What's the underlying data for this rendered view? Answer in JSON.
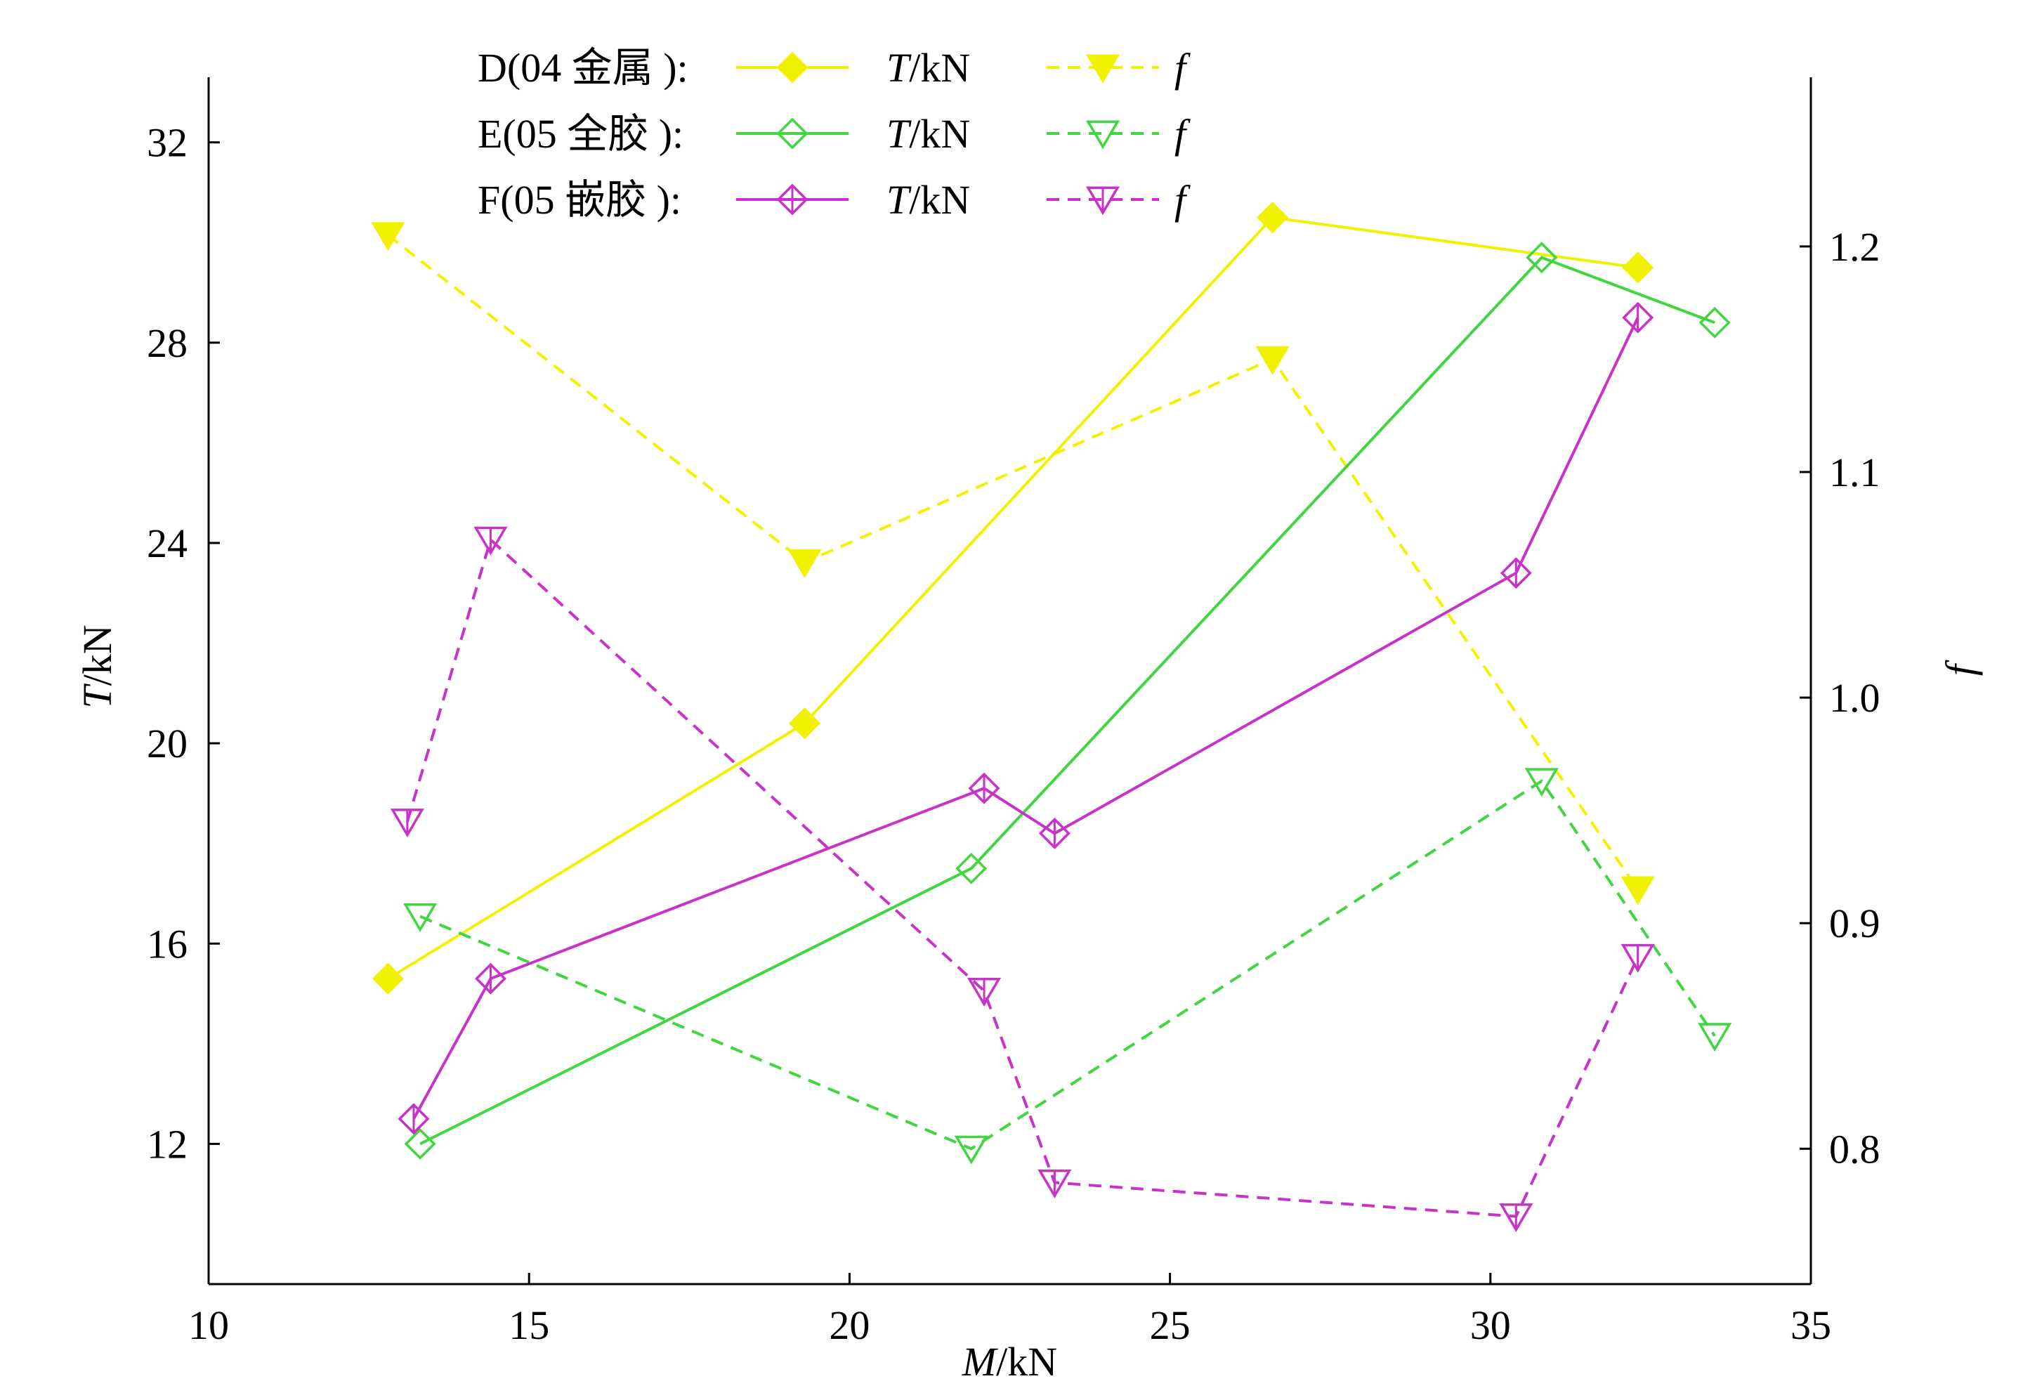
{
  "chart_data": {
    "type": "line",
    "x_axis": {
      "label_italic": "M",
      "label_rest": "/kN",
      "range": [
        10,
        35
      ],
      "ticks": [
        10,
        15,
        20,
        25,
        30,
        35
      ],
      "tick_labels": [
        "10",
        "15",
        "20",
        "25",
        "30",
        "35"
      ]
    },
    "y_axis_left": {
      "label_italic": "T",
      "label_rest": "/kN",
      "range": [
        9.2,
        33.3
      ],
      "ticks": [
        12,
        16,
        20,
        24,
        28,
        32
      ],
      "tick_labels": [
        "12",
        "16",
        "20",
        "24",
        "28",
        "32"
      ]
    },
    "y_axis_right": {
      "label_italic": "f",
      "range": [
        0.74,
        1.275
      ],
      "ticks": [
        0.8,
        0.9,
        1.0,
        1.1,
        1.2
      ],
      "tick_labels": [
        "0.8",
        "0.9",
        "1.0",
        "1.1",
        "1.2"
      ]
    },
    "series": [
      {
        "name": "D(04 金属 ):",
        "color": "#f2f200",
        "marker_fill": "#f2f200",
        "T": {
          "label_italic": "T",
          "label_rest": "/kN",
          "x": [
            12.8,
            19.3,
            26.6,
            32.3
          ],
          "y": [
            15.3,
            20.4,
            30.5,
            29.5
          ]
        },
        "f": {
          "label_italic": "f",
          "x": [
            12.8,
            19.3,
            26.6,
            32.3
          ],
          "y": [
            1.205,
            1.06,
            1.15,
            0.915
          ]
        }
      },
      {
        "name": "E(05 全胶 ):",
        "color": "#3fd63f",
        "marker_fill": "none",
        "T": {
          "label_italic": "T",
          "label_rest": "/kN",
          "x": [
            13.3,
            21.9,
            30.8,
            33.5
          ],
          "y": [
            12.0,
            17.5,
            29.7,
            28.4
          ]
        },
        "f": {
          "label_italic": "f",
          "x": [
            13.3,
            21.9,
            30.8,
            33.5
          ],
          "y": [
            0.903,
            0.8,
            0.963,
            0.85
          ]
        }
      },
      {
        "name": "F(05 嵌胶 ):",
        "color": "#c832c8",
        "marker_fill": "none",
        "T": {
          "label_italic": "T",
          "label_rest": "/kN",
          "x": [
            13.2,
            14.4,
            22.1,
            23.2,
            30.4,
            32.3
          ],
          "y": [
            12.5,
            15.3,
            19.1,
            18.2,
            23.4,
            28.5
          ]
        },
        "f": {
          "label_italic": "f",
          "x": [
            13.1,
            14.4,
            22.1,
            23.2,
            30.4,
            32.3
          ],
          "y": [
            0.945,
            1.07,
            0.87,
            0.785,
            0.77,
            0.885
          ]
        }
      }
    ],
    "legend_placement": "top-left",
    "grid": false
  }
}
